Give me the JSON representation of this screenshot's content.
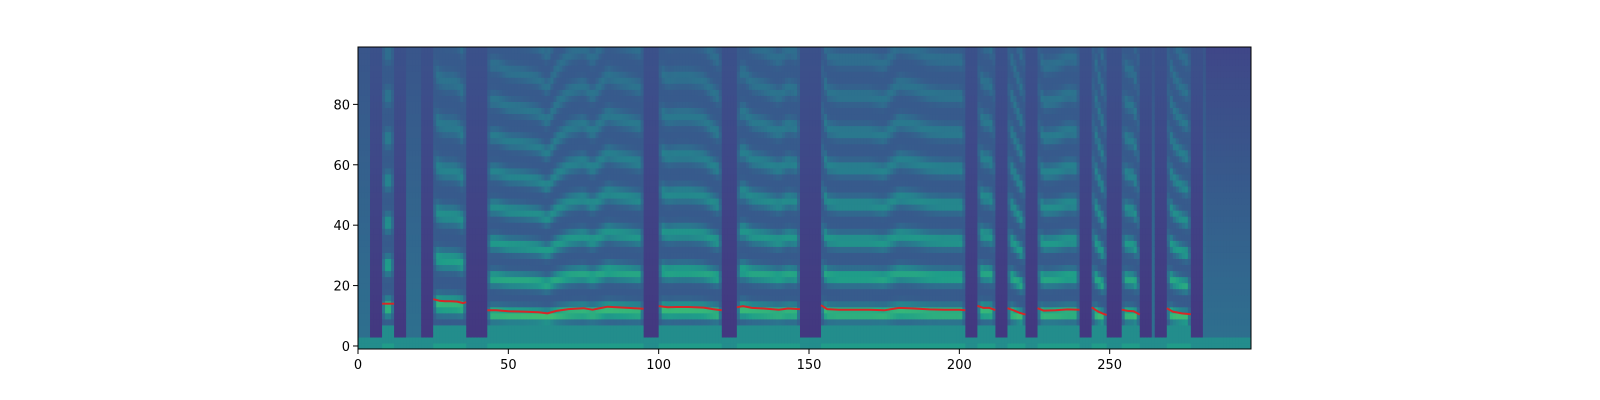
{
  "chart_data": {
    "type": "heatmap",
    "title": "",
    "xlabel": "",
    "ylabel": "",
    "xlim": [
      0,
      297
    ],
    "ylim": [
      -1,
      99
    ],
    "x_ticks": [
      0,
      50,
      100,
      150,
      200,
      250
    ],
    "y_ticks": [
      0,
      20,
      40,
      60,
      80
    ],
    "colormap": "viridis",
    "grid": false,
    "voiced_segments": [
      [
        8,
        12
      ],
      [
        25,
        36
      ],
      [
        43,
        95
      ],
      [
        100,
        121
      ],
      [
        126,
        147
      ],
      [
        154,
        202
      ],
      [
        206,
        212
      ],
      [
        216,
        222
      ],
      [
        226,
        240
      ],
      [
        244,
        249
      ],
      [
        254,
        260
      ],
      [
        269,
        277
      ]
    ],
    "pitch_line": {
      "color": "#d62728",
      "segments": [
        {
          "x": [
            8,
            10,
            12
          ],
          "y": [
            14,
            14,
            14
          ]
        },
        {
          "x": [
            25,
            27,
            29,
            31,
            33,
            35,
            36
          ],
          "y": [
            15.5,
            15,
            14.8,
            14.8,
            14.7,
            14.2,
            14.5
          ]
        },
        {
          "x": [
            43,
            46,
            50,
            55,
            60,
            63,
            66,
            70,
            75,
            78,
            80,
            83,
            86,
            90,
            95
          ],
          "y": [
            11.8,
            11.8,
            11.5,
            11.4,
            11.2,
            10.8,
            11.6,
            12.2,
            12.5,
            12.0,
            12.4,
            13.0,
            12.8,
            12.6,
            12.3
          ]
        },
        {
          "x": [
            100,
            103,
            106,
            110,
            115,
            118,
            121
          ],
          "y": [
            13.2,
            12.8,
            12.9,
            12.9,
            12.7,
            12.2,
            11.8
          ]
        },
        {
          "x": [
            126,
            128,
            131,
            135,
            140,
            143,
            147
          ],
          "y": [
            12.8,
            13.2,
            12.6,
            12.4,
            12.0,
            12.4,
            12.2
          ]
        },
        {
          "x": [
            154,
            156,
            160,
            165,
            170,
            175,
            180,
            185,
            190,
            195,
            200,
            202
          ],
          "y": [
            13.5,
            12.2,
            12.0,
            12.0,
            12.0,
            11.8,
            12.6,
            12.4,
            12.1,
            12.0,
            12.0,
            11.8
          ]
        },
        {
          "x": [
            206,
            208,
            210,
            212
          ],
          "y": [
            13.3,
            12.6,
            12.6,
            11.9
          ]
        },
        {
          "x": [
            216,
            218,
            220,
            222
          ],
          "y": [
            12.5,
            11.8,
            11.0,
            10.4
          ]
        },
        {
          "x": [
            226,
            228,
            232,
            236,
            240
          ],
          "y": [
            12.5,
            11.7,
            11.8,
            12.1,
            12.0
          ]
        },
        {
          "x": [
            244,
            246,
            248,
            249
          ],
          "y": [
            12.8,
            11.5,
            10.6,
            10.3
          ]
        },
        {
          "x": [
            254,
            256,
            258,
            260
          ],
          "y": [
            12.0,
            11.6,
            11.5,
            10.4
          ]
        },
        {
          "x": [
            269,
            271,
            274,
            277
          ],
          "y": [
            12.5,
            11.4,
            10.8,
            10.5
          ]
        }
      ]
    }
  }
}
